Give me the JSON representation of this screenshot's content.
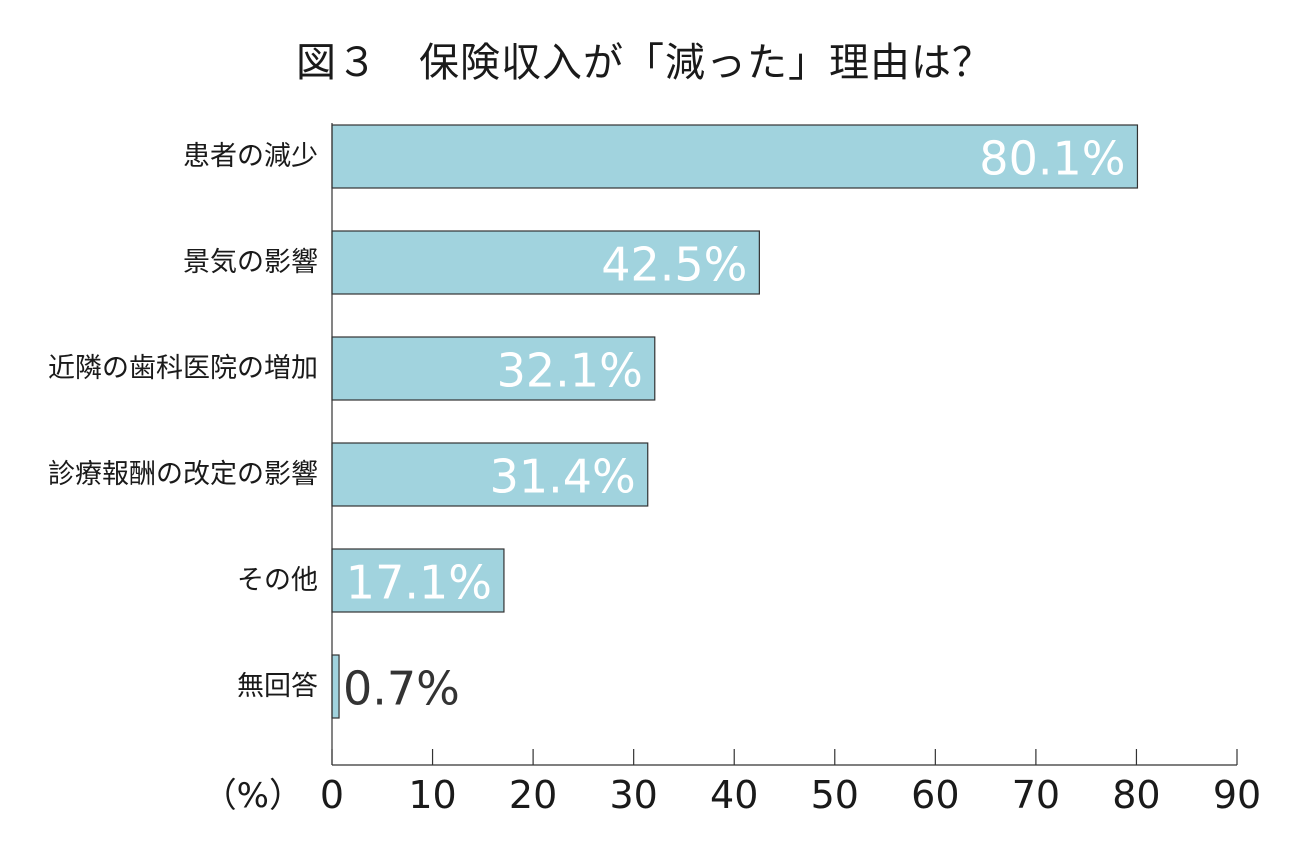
{
  "chart_data": {
    "type": "bar",
    "orientation": "horizontal",
    "title": "図３　保険収入が「減った」理由は？",
    "categories": [
      "患者の減少",
      "景気の影響",
      "近隣の歯科医院の増加",
      "診療報酬の改定の影響",
      "その他",
      "無回答"
    ],
    "values": [
      80.1,
      42.5,
      32.1,
      31.4,
      17.1,
      0.7
    ],
    "value_labels": [
      "80.1%",
      "42.5%",
      "32.1%",
      "31.4%",
      "17.1%",
      "0.7%"
    ],
    "xlabel": "（%）",
    "xlim": [
      0,
      90
    ],
    "xticks": [
      0,
      10,
      20,
      30,
      40,
      50,
      60,
      70,
      80,
      90
    ],
    "xtick_labels": [
      "0",
      "10",
      "20",
      "30",
      "40",
      "50",
      "60",
      "70",
      "80",
      "90"
    ],
    "grid": false,
    "colors": {
      "bar_fill": "#a1d3de",
      "bar_stroke": "#333333",
      "value_text_inside": "#ffffff",
      "value_text_outside": "#333333",
      "axis": "#333333"
    }
  }
}
